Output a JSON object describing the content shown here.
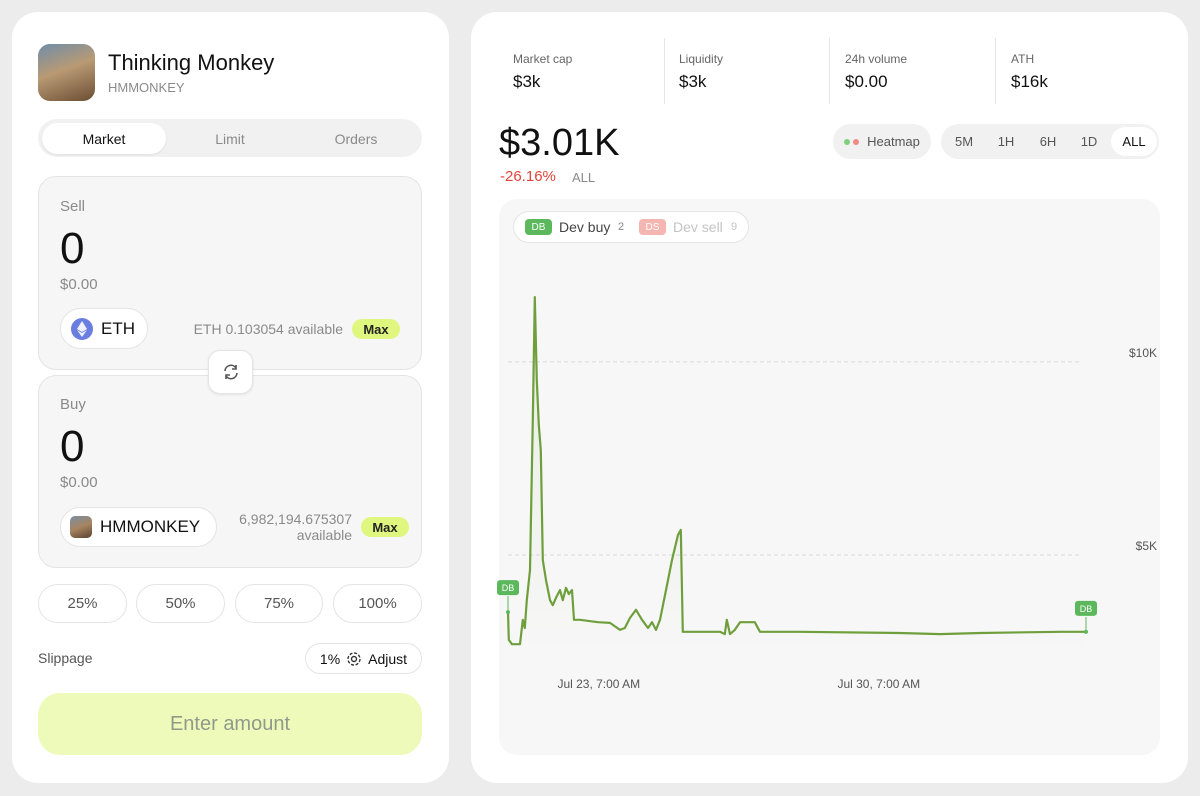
{
  "token": {
    "name": "Thinking Monkey",
    "symbol": "HMMONKEY"
  },
  "tabs": [
    "Market",
    "Limit",
    "Orders"
  ],
  "sell": {
    "label": "Sell",
    "amount": "0",
    "usd": "$0.00",
    "token": "ETH",
    "available": "ETH 0.103054 available",
    "max": "Max"
  },
  "buy": {
    "label": "Buy",
    "amount": "0",
    "usd": "$0.00",
    "token": "HMMONKEY",
    "available": "6,982,194.675307 available",
    "max": "Max"
  },
  "percents": [
    "25%",
    "50%",
    "75%",
    "100%"
  ],
  "slippage": {
    "label": "Slippage",
    "value": "1%",
    "adjust": "Adjust"
  },
  "submit": "Enter amount",
  "stats": [
    {
      "label": "Market cap",
      "value": "$3k"
    },
    {
      "label": "Liquidity",
      "value": "$3k"
    },
    {
      "label": "24h volume",
      "value": "$0.00"
    },
    {
      "label": "ATH",
      "value": "$16k"
    }
  ],
  "price": "$3.01K",
  "change": "-26.16%",
  "change_period": "ALL",
  "heatmap": "Heatmap",
  "ranges": [
    "5M",
    "1H",
    "6H",
    "1D",
    "ALL"
  ],
  "legend": [
    {
      "badge": "DB",
      "label": "Dev buy",
      "count": "2"
    },
    {
      "badge": "DS",
      "label": "Dev sell",
      "count": "9"
    }
  ],
  "chart": {
    "type": "line",
    "color": "#6f9f3c",
    "x": [
      21.02,
      21.04,
      21.12,
      21.32,
      21.39,
      21.44,
      21.49,
      21.57,
      21.64,
      21.69,
      21.74,
      21.79,
      21.84,
      21.89,
      21.97,
      22.07,
      22.14,
      22.22,
      22.32,
      22.39,
      22.47,
      22.54,
      22.62,
      22.67,
      22.82,
      23.27,
      23.57,
      23.82,
      23.94,
      24.07,
      24.22,
      24.37,
      24.52,
      24.62,
      24.72,
      24.82,
      24.97,
      25.12,
      25.27,
      25.34,
      25.39,
      25.82,
      26.32,
      26.44,
      26.49,
      26.57,
      26.69,
      26.82,
      27.19,
      27.32,
      28.32,
      30.82,
      31.82,
      32.82,
      34.82,
      35.47
    ],
    "values": [
      3520,
      2800,
      2690,
      2690,
      3320,
      3110,
      3830,
      4610,
      8500,
      11680,
      9530,
      8370,
      7720,
      4870,
      4350,
      3830,
      3700,
      3890,
      4090,
      3830,
      4150,
      3990,
      4090,
      3320,
      3320,
      3260,
      3240,
      3060,
      3110,
      3370,
      3580,
      3320,
      3110,
      3260,
      3060,
      3320,
      4090,
      4870,
      5520,
      5650,
      3010,
      3010,
      3010,
      2950,
      3320,
      2950,
      3060,
      3260,
      3260,
      3010,
      3010,
      2980,
      2950,
      2980,
      3010,
      3010
    ],
    "xlim": [
      21.02,
      35.47
    ],
    "ylim": [
      2280,
      12640
    ],
    "xticks": [
      {
        "value": 23.29,
        "label": "Jul 23, 7:00 AM"
      },
      {
        "value": 30.29,
        "label": "Jul 30, 7:00 AM"
      }
    ],
    "yticks": [
      {
        "value": 5000,
        "label": "$5K"
      },
      {
        "value": 10000,
        "label": "$10K"
      }
    ],
    "grid": true,
    "marker_labels": [
      "DB",
      "DB"
    ]
  }
}
